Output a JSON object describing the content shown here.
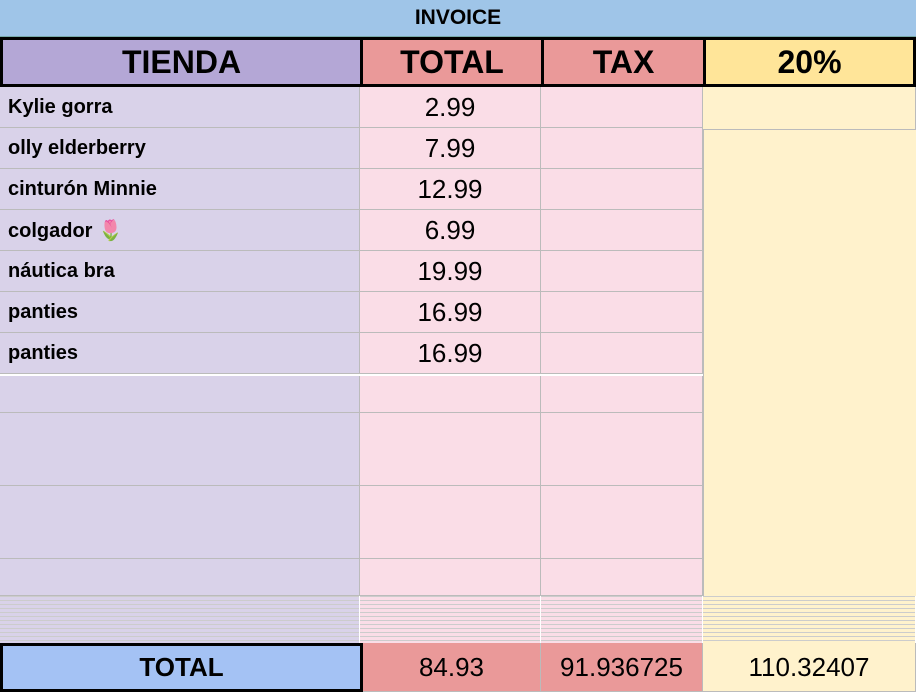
{
  "title": "INVOICE",
  "headers": [
    "TIENDA",
    "TOTAL",
    "TAX",
    "20%"
  ],
  "rows": [
    {
      "item": "Kylie gorra",
      "total": 2.99
    },
    {
      "item": "olly elderberry",
      "total": 7.99
    },
    {
      "item": "cinturón Minnie",
      "total": 12.99
    },
    {
      "item": "colgador 🌷",
      "total": 6.99
    },
    {
      "item": "náutica bra",
      "total": 19.99
    },
    {
      "item": "panties",
      "total": 16.99
    },
    {
      "item": "panties",
      "total": 16.99
    }
  ],
  "totals": {
    "label": "TOTAL",
    "total": 84.93,
    "tax": 91.936725,
    "percent": 110.32407
  }
}
